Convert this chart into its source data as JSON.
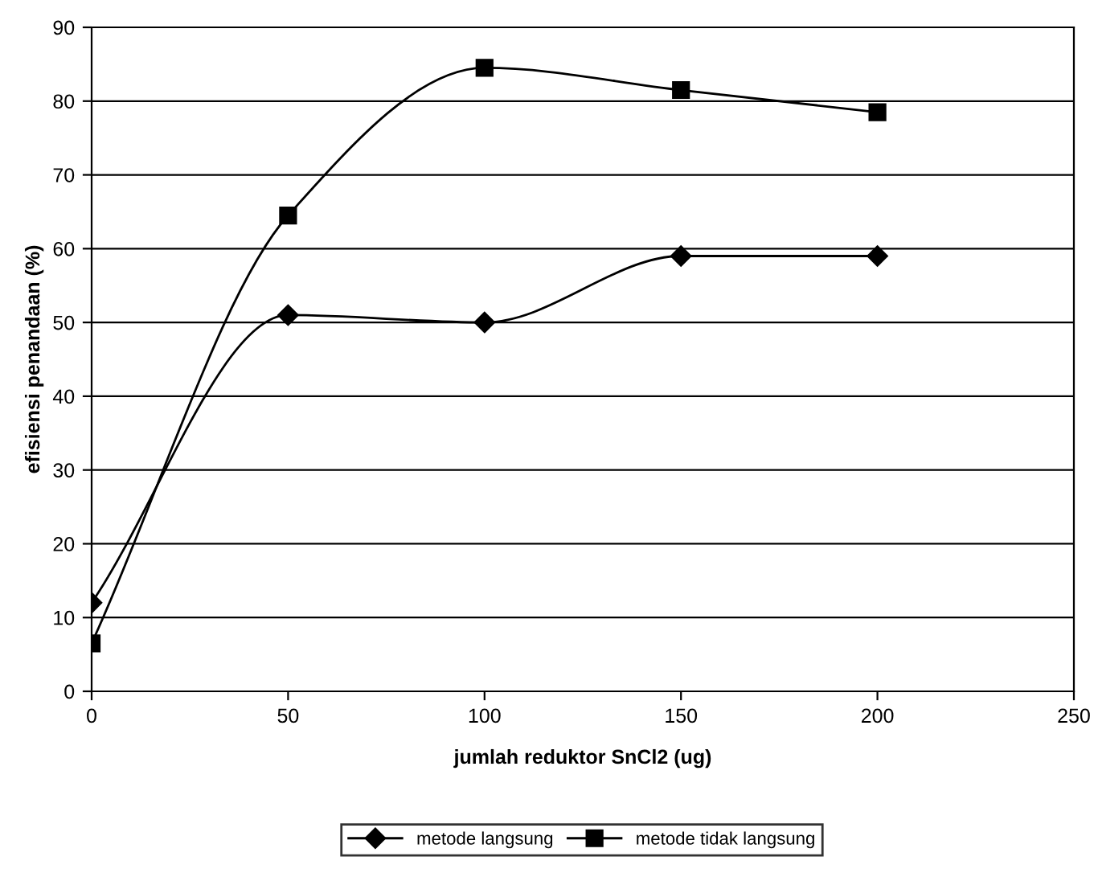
{
  "chart_data": {
    "type": "line",
    "xlabel": "jumlah reduktor SnCl2 (ug)",
    "ylabel": "efisiensi penandaan (%)",
    "x": [
      0,
      50,
      100,
      150,
      200
    ],
    "series": [
      {
        "name": "metode langsung",
        "color": "#000000",
        "marker": "diamond",
        "values": [
          12,
          51,
          50,
          59,
          59
        ]
      },
      {
        "name": "metode tidak langsung",
        "color": "#000000",
        "marker": "square",
        "values": [
          6.5,
          64.5,
          84.5,
          81.5,
          78.5
        ]
      }
    ],
    "xlim": [
      0,
      250
    ],
    "xticks": [
      0,
      50,
      100,
      150,
      200,
      250
    ],
    "ylim": [
      0,
      90
    ],
    "yticks": [
      0,
      10,
      20,
      30,
      40,
      50,
      60,
      70,
      80,
      90
    ],
    "grid": "y",
    "legend": "bottom",
    "line_style": "solid"
  }
}
